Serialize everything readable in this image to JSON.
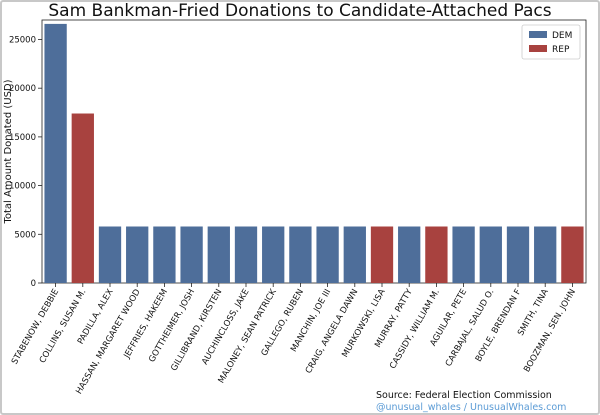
{
  "chart_data": {
    "type": "bar",
    "title": "Sam Bankman-Fried Donations to Candidate-Attached Pacs",
    "xlabel": "",
    "ylabel": "Total Amount Donated (USD)",
    "ylim": [
      0,
      27000
    ],
    "yticks": [
      0,
      5000,
      10000,
      15000,
      20000,
      25000
    ],
    "grid": false,
    "legend_position": "top-right",
    "series_colors": {
      "DEM": "#4e6e9a",
      "REP": "#a8423f"
    },
    "legend": [
      "DEM",
      "REP"
    ],
    "categories": [
      "STABENOW, DEBBIE",
      "COLLINS, SUSAN M.",
      "PADILLA, ALEX",
      "HASSAN, MARGARET WOOD",
      "JEFFRIES, HAKEEM",
      "GOTTHEIMER, JOSH",
      "GILLIBRAND, KIRSTEN",
      "AUCHINCLOSS, JAKE",
      "MALONEY, SEAN PATRICK",
      "GALLEGO, RUBEN",
      "MANCHIN, JOE III",
      "CRAIG, ANGELA DAWN",
      "MURKOWSKI, LISA",
      "MURRAY, PATTY",
      "CASSIDY, WILLIAM M.",
      "AGUILAR, PETE",
      "CARBAJAL, SALUD O.",
      "BOYLE, BRENDAN F",
      "SMITH, TINA",
      "BOOZMAN, SEN. JOHN"
    ],
    "values": [
      26600,
      17400,
      5800,
      5800,
      5800,
      5800,
      5800,
      5800,
      5800,
      5800,
      5800,
      5800,
      5800,
      5800,
      5800,
      5800,
      5800,
      5800,
      5800,
      5800
    ],
    "party": [
      "DEM",
      "REP",
      "DEM",
      "DEM",
      "DEM",
      "DEM",
      "DEM",
      "DEM",
      "DEM",
      "DEM",
      "DEM",
      "DEM",
      "REP",
      "DEM",
      "REP",
      "DEM",
      "DEM",
      "DEM",
      "DEM",
      "REP"
    ]
  },
  "footer": {
    "source": "Source: Federal Election Commission",
    "credit": "@unusual_whales / UnusualWhales.com"
  }
}
